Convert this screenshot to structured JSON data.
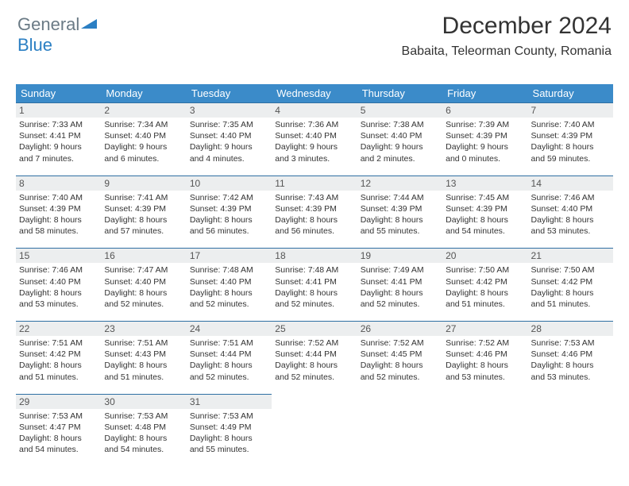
{
  "brand": {
    "part1": "General",
    "part2": "Blue",
    "color1": "#6a7a85",
    "color2": "#2b7fc3"
  },
  "title": "December 2024",
  "location": "Babaita, Teleorman County, Romania",
  "header_bg": "#3b8bc9",
  "daynum_bg": "#eceeef",
  "divider_color": "#2f6fa3",
  "weekdays": [
    "Sunday",
    "Monday",
    "Tuesday",
    "Wednesday",
    "Thursday",
    "Friday",
    "Saturday"
  ],
  "weeks": [
    [
      {
        "n": "1",
        "sr": "Sunrise: 7:33 AM",
        "ss": "Sunset: 4:41 PM",
        "d1": "Daylight: 9 hours",
        "d2": "and 7 minutes."
      },
      {
        "n": "2",
        "sr": "Sunrise: 7:34 AM",
        "ss": "Sunset: 4:40 PM",
        "d1": "Daylight: 9 hours",
        "d2": "and 6 minutes."
      },
      {
        "n": "3",
        "sr": "Sunrise: 7:35 AM",
        "ss": "Sunset: 4:40 PM",
        "d1": "Daylight: 9 hours",
        "d2": "and 4 minutes."
      },
      {
        "n": "4",
        "sr": "Sunrise: 7:36 AM",
        "ss": "Sunset: 4:40 PM",
        "d1": "Daylight: 9 hours",
        "d2": "and 3 minutes."
      },
      {
        "n": "5",
        "sr": "Sunrise: 7:38 AM",
        "ss": "Sunset: 4:40 PM",
        "d1": "Daylight: 9 hours",
        "d2": "and 2 minutes."
      },
      {
        "n": "6",
        "sr": "Sunrise: 7:39 AM",
        "ss": "Sunset: 4:39 PM",
        "d1": "Daylight: 9 hours",
        "d2": "and 0 minutes."
      },
      {
        "n": "7",
        "sr": "Sunrise: 7:40 AM",
        "ss": "Sunset: 4:39 PM",
        "d1": "Daylight: 8 hours",
        "d2": "and 59 minutes."
      }
    ],
    [
      {
        "n": "8",
        "sr": "Sunrise: 7:40 AM",
        "ss": "Sunset: 4:39 PM",
        "d1": "Daylight: 8 hours",
        "d2": "and 58 minutes."
      },
      {
        "n": "9",
        "sr": "Sunrise: 7:41 AM",
        "ss": "Sunset: 4:39 PM",
        "d1": "Daylight: 8 hours",
        "d2": "and 57 minutes."
      },
      {
        "n": "10",
        "sr": "Sunrise: 7:42 AM",
        "ss": "Sunset: 4:39 PM",
        "d1": "Daylight: 8 hours",
        "d2": "and 56 minutes."
      },
      {
        "n": "11",
        "sr": "Sunrise: 7:43 AM",
        "ss": "Sunset: 4:39 PM",
        "d1": "Daylight: 8 hours",
        "d2": "and 56 minutes."
      },
      {
        "n": "12",
        "sr": "Sunrise: 7:44 AM",
        "ss": "Sunset: 4:39 PM",
        "d1": "Daylight: 8 hours",
        "d2": "and 55 minutes."
      },
      {
        "n": "13",
        "sr": "Sunrise: 7:45 AM",
        "ss": "Sunset: 4:39 PM",
        "d1": "Daylight: 8 hours",
        "d2": "and 54 minutes."
      },
      {
        "n": "14",
        "sr": "Sunrise: 7:46 AM",
        "ss": "Sunset: 4:40 PM",
        "d1": "Daylight: 8 hours",
        "d2": "and 53 minutes."
      }
    ],
    [
      {
        "n": "15",
        "sr": "Sunrise: 7:46 AM",
        "ss": "Sunset: 4:40 PM",
        "d1": "Daylight: 8 hours",
        "d2": "and 53 minutes."
      },
      {
        "n": "16",
        "sr": "Sunrise: 7:47 AM",
        "ss": "Sunset: 4:40 PM",
        "d1": "Daylight: 8 hours",
        "d2": "and 52 minutes."
      },
      {
        "n": "17",
        "sr": "Sunrise: 7:48 AM",
        "ss": "Sunset: 4:40 PM",
        "d1": "Daylight: 8 hours",
        "d2": "and 52 minutes."
      },
      {
        "n": "18",
        "sr": "Sunrise: 7:48 AM",
        "ss": "Sunset: 4:41 PM",
        "d1": "Daylight: 8 hours",
        "d2": "and 52 minutes."
      },
      {
        "n": "19",
        "sr": "Sunrise: 7:49 AM",
        "ss": "Sunset: 4:41 PM",
        "d1": "Daylight: 8 hours",
        "d2": "and 52 minutes."
      },
      {
        "n": "20",
        "sr": "Sunrise: 7:50 AM",
        "ss": "Sunset: 4:42 PM",
        "d1": "Daylight: 8 hours",
        "d2": "and 51 minutes."
      },
      {
        "n": "21",
        "sr": "Sunrise: 7:50 AM",
        "ss": "Sunset: 4:42 PM",
        "d1": "Daylight: 8 hours",
        "d2": "and 51 minutes."
      }
    ],
    [
      {
        "n": "22",
        "sr": "Sunrise: 7:51 AM",
        "ss": "Sunset: 4:42 PM",
        "d1": "Daylight: 8 hours",
        "d2": "and 51 minutes."
      },
      {
        "n": "23",
        "sr": "Sunrise: 7:51 AM",
        "ss": "Sunset: 4:43 PM",
        "d1": "Daylight: 8 hours",
        "d2": "and 51 minutes."
      },
      {
        "n": "24",
        "sr": "Sunrise: 7:51 AM",
        "ss": "Sunset: 4:44 PM",
        "d1": "Daylight: 8 hours",
        "d2": "and 52 minutes."
      },
      {
        "n": "25",
        "sr": "Sunrise: 7:52 AM",
        "ss": "Sunset: 4:44 PM",
        "d1": "Daylight: 8 hours",
        "d2": "and 52 minutes."
      },
      {
        "n": "26",
        "sr": "Sunrise: 7:52 AM",
        "ss": "Sunset: 4:45 PM",
        "d1": "Daylight: 8 hours",
        "d2": "and 52 minutes."
      },
      {
        "n": "27",
        "sr": "Sunrise: 7:52 AM",
        "ss": "Sunset: 4:46 PM",
        "d1": "Daylight: 8 hours",
        "d2": "and 53 minutes."
      },
      {
        "n": "28",
        "sr": "Sunrise: 7:53 AM",
        "ss": "Sunset: 4:46 PM",
        "d1": "Daylight: 8 hours",
        "d2": "and 53 minutes."
      }
    ],
    [
      {
        "n": "29",
        "sr": "Sunrise: 7:53 AM",
        "ss": "Sunset: 4:47 PM",
        "d1": "Daylight: 8 hours",
        "d2": "and 54 minutes."
      },
      {
        "n": "30",
        "sr": "Sunrise: 7:53 AM",
        "ss": "Sunset: 4:48 PM",
        "d1": "Daylight: 8 hours",
        "d2": "and 54 minutes."
      },
      {
        "n": "31",
        "sr": "Sunrise: 7:53 AM",
        "ss": "Sunset: 4:49 PM",
        "d1": "Daylight: 8 hours",
        "d2": "and 55 minutes."
      },
      {
        "empty": true
      },
      {
        "empty": true
      },
      {
        "empty": true
      },
      {
        "empty": true
      }
    ]
  ]
}
